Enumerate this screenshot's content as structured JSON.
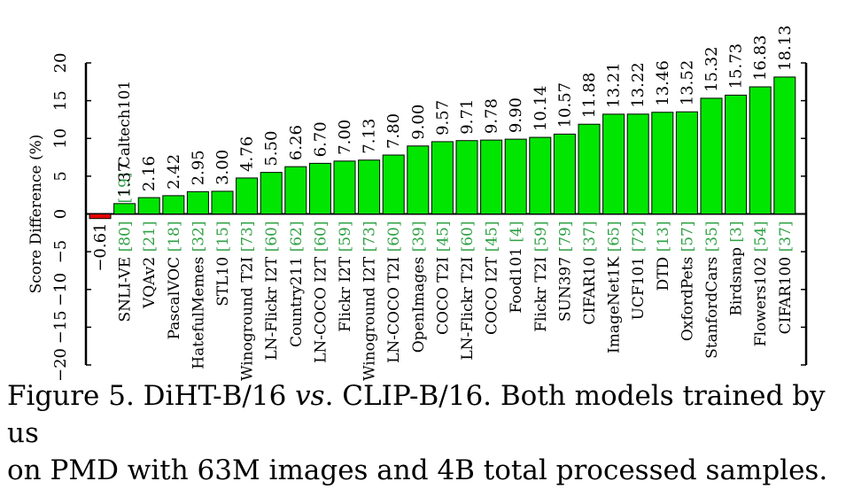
{
  "chart_data": {
    "type": "bar",
    "ylabel": "Score Difference (%)",
    "ylim": [
      -20,
      20
    ],
    "yticks": [
      -20,
      -15,
      -10,
      -5,
      0,
      5,
      10,
      15,
      20
    ],
    "grid": false,
    "colors": {
      "positive": "#00e600",
      "negative": "#e60000",
      "edge": "#000000",
      "ref": "#2ea043"
    },
    "categories": [
      {
        "name": "Caltech101",
        "ref": "[19]"
      },
      {
        "name": "SNLI-VE",
        "ref": "[80]"
      },
      {
        "name": "VQAv2",
        "ref": "[21]"
      },
      {
        "name": "PascalVOC",
        "ref": "[18]"
      },
      {
        "name": "HatefulMemes",
        "ref": "[32]"
      },
      {
        "name": "STL10",
        "ref": "[15]"
      },
      {
        "name": "Winoground T2I",
        "ref": "[73]"
      },
      {
        "name": "LN-Flickr I2T",
        "ref": "[60]"
      },
      {
        "name": "Country211",
        "ref": "[62]"
      },
      {
        "name": "LN-COCO I2T",
        "ref": "[60]"
      },
      {
        "name": "Flickr I2T",
        "ref": "[59]"
      },
      {
        "name": "Winoground I2T",
        "ref": "[73]"
      },
      {
        "name": "LN-COCO T2I",
        "ref": "[60]"
      },
      {
        "name": "OpenImages",
        "ref": "[39]"
      },
      {
        "name": "COCO T2I",
        "ref": "[45]"
      },
      {
        "name": "LN-Flickr T2I",
        "ref": "[60]"
      },
      {
        "name": "COCO I2T",
        "ref": "[45]"
      },
      {
        "name": "Food101",
        "ref": "[4]"
      },
      {
        "name": "Flickr T2I",
        "ref": "[59]"
      },
      {
        "name": "SUN397",
        "ref": "[79]"
      },
      {
        "name": "CIFAR10",
        "ref": "[37]"
      },
      {
        "name": "ImageNet1K",
        "ref": "[65]"
      },
      {
        "name": "UCF101",
        "ref": "[72]"
      },
      {
        "name": "DTD",
        "ref": "[13]"
      },
      {
        "name": "OxfordPets",
        "ref": "[57]"
      },
      {
        "name": "StanfordCars",
        "ref": "[35]"
      },
      {
        "name": "Birdsnap",
        "ref": "[3]"
      },
      {
        "name": "Flowers102",
        "ref": "[54]"
      },
      {
        "name": "CIFAR100",
        "ref": "[37]"
      }
    ],
    "values": [
      -0.61,
      1.37,
      2.16,
      2.42,
      2.95,
      3.0,
      4.76,
      5.5,
      6.26,
      6.7,
      7.0,
      7.13,
      7.8,
      9.0,
      9.57,
      9.71,
      9.78,
      9.9,
      10.14,
      10.57,
      11.88,
      13.21,
      13.22,
      13.46,
      13.52,
      15.32,
      15.73,
      16.83,
      18.13
    ],
    "value_labels": [
      "−0.61",
      "1.37",
      "2.16",
      "2.42",
      "2.95",
      "3.00",
      "4.76",
      "5.50",
      "6.26",
      "6.70",
      "7.00",
      "7.13",
      "7.80",
      "9.00",
      "9.57",
      "9.71",
      "9.78",
      "9.90",
      "10.14",
      "10.57",
      "11.88",
      "13.21",
      "13.22",
      "13.46",
      "13.52",
      "15.32",
      "15.73",
      "16.83",
      "18.13"
    ]
  },
  "caption": {
    "prefix": "Figure 5.  DiHT-B/16 ",
    "vs": "vs",
    "rest": ". CLIP-B/16.  Both models trained by us",
    "line2": "on PMD with 63M images and 4B total processed samples."
  }
}
